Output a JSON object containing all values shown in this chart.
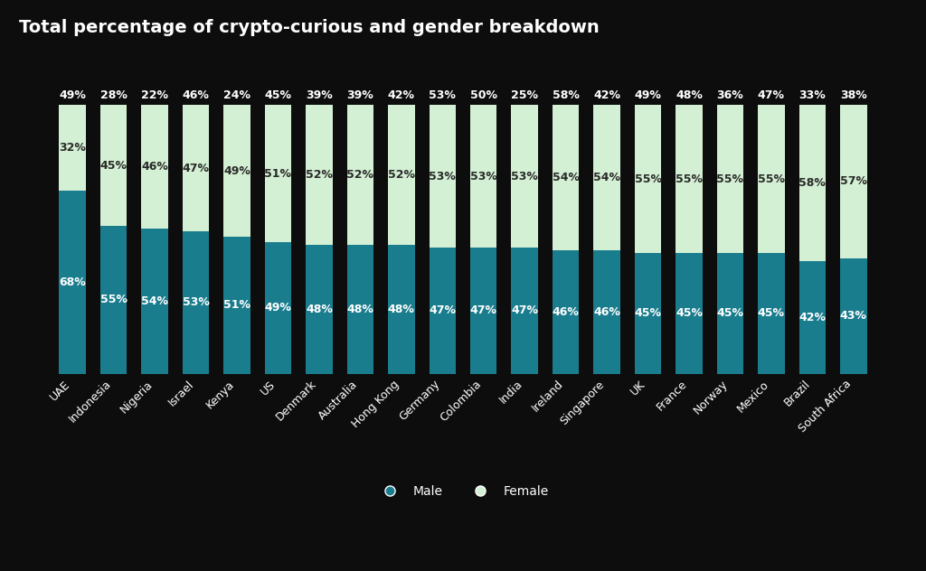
{
  "title": "Total percentage of crypto-curious and gender breakdown",
  "categories": [
    "UAE",
    "Indonesia",
    "Nigeria",
    "Israel",
    "Kenya",
    "US",
    "Denmark",
    "Australia",
    "Hong Kong",
    "Germany",
    "Colombia",
    "India",
    "Ireland",
    "Singapore",
    "UK",
    "France",
    "Norway",
    "Mexico",
    "Brazil",
    "South Africa"
  ],
  "male": [
    68,
    55,
    54,
    53,
    51,
    49,
    48,
    48,
    48,
    47,
    47,
    47,
    46,
    46,
    45,
    45,
    45,
    45,
    42,
    43
  ],
  "female": [
    32,
    45,
    46,
    47,
    49,
    51,
    52,
    52,
    52,
    53,
    53,
    53,
    54,
    54,
    55,
    55,
    55,
    55,
    58,
    57
  ],
  "top_labels": [
    49,
    28,
    22,
    46,
    24,
    45,
    39,
    39,
    42,
    53,
    50,
    25,
    58,
    42,
    49,
    48,
    36,
    47,
    33,
    38
  ],
  "male_color": "#1a7d8e",
  "female_color": "#d4f0d4",
  "bg_color": "#0d0d0d",
  "text_color": "#ffffff",
  "female_label_color": "#2a2a2a",
  "title_fontsize": 14,
  "label_fontsize": 9,
  "tick_fontsize": 9
}
